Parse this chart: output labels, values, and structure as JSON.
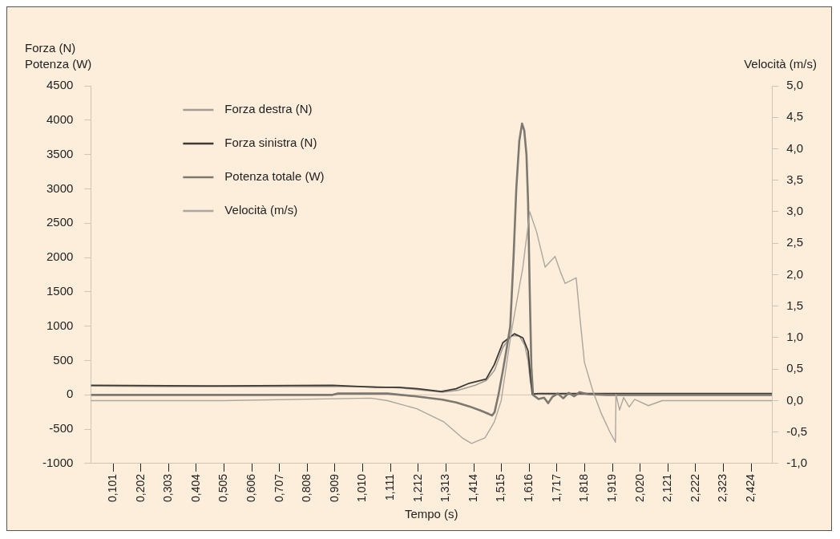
{
  "chart_data": {
    "type": "line",
    "xlabel": "Tempo (s)",
    "ylabel": "Forza (N)\nPotenza (W)",
    "y2label": "Velocità (m/s)",
    "xlim": [
      0.02,
      2.5
    ],
    "xticks": [
      {
        "value": 0.101,
        "label": "0,101"
      },
      {
        "value": 0.202,
        "label": "0,202"
      },
      {
        "value": 0.303,
        "label": "0,303"
      },
      {
        "value": 0.404,
        "label": "0,404"
      },
      {
        "value": 0.505,
        "label": "0,505"
      },
      {
        "value": 0.606,
        "label": "0,606"
      },
      {
        "value": 0.707,
        "label": "0,707"
      },
      {
        "value": 0.808,
        "label": "0,808"
      },
      {
        "value": 0.909,
        "label": "0,909"
      },
      {
        "value": 1.01,
        "label": "1,010"
      },
      {
        "value": 1.111,
        "label": "1,111"
      },
      {
        "value": 1.212,
        "label": "1,212"
      },
      {
        "value": 1.313,
        "label": "1,313"
      },
      {
        "value": 1.414,
        "label": "1,414"
      },
      {
        "value": 1.515,
        "label": "1,515"
      },
      {
        "value": 1.616,
        "label": "1,616"
      },
      {
        "value": 1.717,
        "label": "1,717"
      },
      {
        "value": 1.818,
        "label": "1,818"
      },
      {
        "value": 1.919,
        "label": "1,919"
      },
      {
        "value": 2.02,
        "label": "2,020"
      },
      {
        "value": 2.121,
        "label": "2,121"
      },
      {
        "value": 2.222,
        "label": "2,222"
      },
      {
        "value": 2.323,
        "label": "2,323"
      },
      {
        "value": 2.424,
        "label": "2,424"
      }
    ],
    "ylim": [
      -1000,
      4500
    ],
    "yticks": [
      -1000,
      -500,
      0,
      500,
      1000,
      1500,
      2000,
      2500,
      3000,
      3500,
      4000,
      4500
    ],
    "y2lim": [
      -1,
      5
    ],
    "y2ticks": [
      {
        "value": -1,
        "label": "-1,0"
      },
      {
        "value": -0.5,
        "label": "-0,5"
      },
      {
        "value": 0,
        "label": "0,0"
      },
      {
        "value": 0.5,
        "label": "0,5"
      },
      {
        "value": 1,
        "label": "1,0"
      },
      {
        "value": 1.5,
        "label": "1,5"
      },
      {
        "value": 2,
        "label": "2,0"
      },
      {
        "value": 2.5,
        "label": "2,5"
      },
      {
        "value": 3,
        "label": "3,0"
      },
      {
        "value": 3.5,
        "label": "3,5"
      },
      {
        "value": 4,
        "label": "4,0"
      },
      {
        "value": 4.5,
        "label": "4,5"
      },
      {
        "value": 5,
        "label": "5,0"
      }
    ],
    "grid": false,
    "legend": "top left",
    "marker": "none",
    "line_style": "solid",
    "ref_lines": [
      {
        "axis": "y",
        "value": 0,
        "color": "#cfc5b6"
      }
    ],
    "series": [
      {
        "name": "Forza destra (N)",
        "color": "#a39d95",
        "x": [
          0.02,
          0.3,
          0.6,
          0.9,
          1.05,
          1.15,
          1.25,
          1.3,
          1.36,
          1.42,
          1.46,
          1.49,
          1.52,
          1.55,
          1.58,
          1.6,
          1.612,
          1.62,
          1.63,
          1.7,
          1.8,
          2.0,
          2.5
        ],
        "values": [
          130,
          120,
          120,
          120,
          120,
          100,
          60,
          40,
          70,
          140,
          210,
          360,
          690,
          860,
          860,
          720,
          500,
          200,
          20,
          10,
          10,
          10,
          10
        ]
      },
      {
        "name": "Forza sinistra (N)",
        "color": "#3c3833",
        "x": [
          0.02,
          0.49,
          0.9,
          1.06,
          1.142,
          1.21,
          1.296,
          1.35,
          1.398,
          1.459,
          1.489,
          1.52,
          1.562,
          1.593,
          1.612,
          1.62,
          1.627,
          1.65,
          1.8,
          2.0,
          2.5
        ],
        "values": [
          140,
          130,
          140,
          110,
          110,
          90,
          50,
          90,
          170,
          230,
          440,
          760,
          890,
          830,
          640,
          290,
          10,
          20,
          20,
          20,
          20
        ]
      },
      {
        "name": "Potenza totale (W)",
        "color": "#7d7870",
        "x": [
          0.02,
          0.9,
          0.92,
          1.1,
          1.15,
          1.2,
          1.3,
          1.35,
          1.4,
          1.44,
          1.47,
          1.481,
          1.49,
          1.504,
          1.52,
          1.535,
          1.547,
          1.559,
          1.569,
          1.58,
          1.59,
          1.598,
          1.606,
          1.612,
          1.618,
          1.624,
          1.63,
          1.65,
          1.67,
          1.685,
          1.7,
          1.72,
          1.74,
          1.76,
          1.78,
          1.8,
          1.83,
          1.9,
          2.0,
          2.5
        ],
        "values": [
          0,
          0,
          20,
          20,
          0,
          -20,
          -70,
          -110,
          -170,
          -230,
          -280,
          -300,
          -250,
          0,
          350,
          700,
          1000,
          2000,
          3000,
          3700,
          3950,
          3850,
          3500,
          2800,
          1500,
          400,
          0,
          -60,
          -40,
          -120,
          -30,
          20,
          -50,
          30,
          -20,
          40,
          10,
          0,
          0,
          0
        ]
      },
      {
        "name": "Velocità (m/s)",
        "color": "#aca69d",
        "axis": "y2",
        "x": [
          0.02,
          0.5,
          1.04,
          1.1,
          1.207,
          1.306,
          1.372,
          1.406,
          1.455,
          1.489,
          1.514,
          1.551,
          1.593,
          1.618,
          1.643,
          1.674,
          1.71,
          1.731,
          1.747,
          1.787,
          1.802,
          1.817,
          1.848,
          1.878,
          1.91,
          1.93,
          1.932,
          1.945,
          1.96,
          1.98,
          2.0,
          2.05,
          2.1,
          2.15,
          2.5
        ],
        "values": [
          0,
          0,
          0.04,
          0.0,
          -0.13,
          -0.34,
          -0.59,
          -0.68,
          -0.59,
          -0.34,
          0,
          1.09,
          2.12,
          3.0,
          2.68,
          2.12,
          2.29,
          2.03,
          1.86,
          1.95,
          1.26,
          0.61,
          0.15,
          -0.2,
          -0.5,
          -0.66,
          0.1,
          -0.15,
          0.05,
          -0.1,
          0.02,
          -0.08,
          0,
          0,
          0
        ]
      }
    ]
  }
}
